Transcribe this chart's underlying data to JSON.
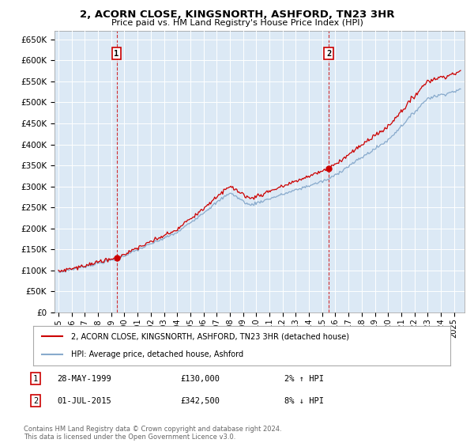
{
  "title": "2, ACORN CLOSE, KINGSNORTH, ASHFORD, TN23 3HR",
  "subtitle": "Price paid vs. HM Land Registry's House Price Index (HPI)",
  "ylim": [
    0,
    670000
  ],
  "yticks": [
    0,
    50000,
    100000,
    150000,
    200000,
    250000,
    300000,
    350000,
    400000,
    450000,
    500000,
    550000,
    600000,
    650000
  ],
  "ytick_labels": [
    "£0",
    "£50K",
    "£100K",
    "£150K",
    "£200K",
    "£250K",
    "£300K",
    "£350K",
    "£400K",
    "£450K",
    "£500K",
    "£550K",
    "£600K",
    "£650K"
  ],
  "background_color": "#dce9f5",
  "grid_color": "#ffffff",
  "sale1_date_x": 1999.41,
  "sale1_price": 130000,
  "sale1_label": "1",
  "sale1_date_str": "28-MAY-1999",
  "sale1_price_str": "£130,000",
  "sale1_pct": "2% ↑ HPI",
  "sale2_date_x": 2015.5,
  "sale2_price": 342500,
  "sale2_label": "2",
  "sale2_date_str": "01-JUL-2015",
  "sale2_price_str": "£342,500",
  "sale2_pct": "8% ↓ HPI",
  "property_line_color": "#cc0000",
  "hpi_line_color": "#88aacc",
  "legend_property": "2, ACORN CLOSE, KINGSNORTH, ASHFORD, TN23 3HR (detached house)",
  "legend_hpi": "HPI: Average price, detached house, Ashford",
  "footnote": "Contains HM Land Registry data © Crown copyright and database right 2024.\nThis data is licensed under the Open Government Licence v3.0.",
  "xlim_start": 1994.7,
  "xlim_end": 2025.8
}
